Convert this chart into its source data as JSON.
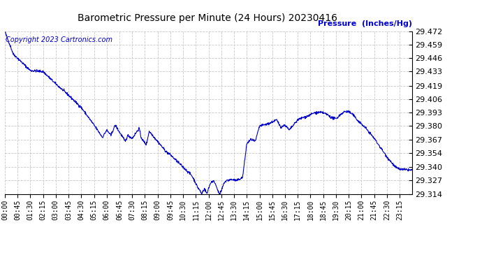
{
  "title": "Barometric Pressure per Minute (24 Hours) 20230416",
  "ylabel": "Pressure  (Inches/Hg)",
  "copyright_text": "Copyright 2023 Cartronics.com",
  "line_color": "#0000cc",
  "ylabel_color": "#0000cc",
  "copyright_color": "#0000cc",
  "background_color": "#ffffff",
  "grid_color": "#c8c8c8",
  "title_color": "#000000",
  "ylim_min": 29.314,
  "ylim_max": 29.472,
  "yticks": [
    29.314,
    29.327,
    29.34,
    29.354,
    29.367,
    29.38,
    29.393,
    29.406,
    29.419,
    29.433,
    29.446,
    29.459,
    29.472
  ],
  "xtick_labels": [
    "00:00",
    "00:45",
    "01:30",
    "02:15",
    "03:00",
    "03:45",
    "04:30",
    "05:15",
    "06:00",
    "06:45",
    "07:30",
    "08:15",
    "09:00",
    "09:45",
    "10:30",
    "11:15",
    "12:00",
    "12:45",
    "13:30",
    "14:15",
    "15:00",
    "15:45",
    "16:30",
    "17:15",
    "18:00",
    "18:45",
    "19:30",
    "20:15",
    "21:00",
    "21:45",
    "22:30",
    "23:15"
  ],
  "breakpoints_x": [
    0,
    30,
    90,
    135,
    180,
    225,
    270,
    315,
    330,
    345,
    360,
    375,
    390,
    405,
    415,
    425,
    435,
    450,
    465,
    475,
    480,
    490,
    500,
    510,
    525,
    540,
    555,
    570,
    585,
    600,
    615,
    630,
    645,
    660,
    670,
    680,
    690,
    695,
    705,
    715,
    720,
    730,
    740,
    750,
    755,
    760,
    765,
    770,
    775,
    785,
    800,
    820,
    840,
    855,
    870,
    885,
    900,
    930,
    945,
    960,
    975,
    990,
    1005,
    1020,
    1035,
    1050,
    1065,
    1080,
    1095,
    1110,
    1125,
    1140,
    1155,
    1170,
    1185,
    1200,
    1215,
    1230,
    1245,
    1260,
    1275,
    1290,
    1305,
    1320,
    1335,
    1350,
    1365,
    1380,
    1395,
    1439
  ],
  "breakpoints_y": [
    29.472,
    29.45,
    29.434,
    29.433,
    29.421,
    29.41,
    29.398,
    29.381,
    29.375,
    29.369,
    29.376,
    29.371,
    29.381,
    29.374,
    29.37,
    29.365,
    29.371,
    29.368,
    29.374,
    29.378,
    29.37,
    29.365,
    29.362,
    29.375,
    29.37,
    29.365,
    29.36,
    29.355,
    29.352,
    29.348,
    29.344,
    29.34,
    29.336,
    29.332,
    29.327,
    29.321,
    29.317,
    29.314,
    29.319,
    29.314,
    29.32,
    29.326,
    29.326,
    29.32,
    29.315,
    29.314,
    29.317,
    29.321,
    29.325,
    29.327,
    29.328,
    29.327,
    29.33,
    29.363,
    29.367,
    29.365,
    29.38,
    29.382,
    29.384,
    29.386,
    29.379,
    29.381,
    29.376,
    29.381,
    29.386,
    29.388,
    29.389,
    29.391,
    29.393,
    29.393,
    29.393,
    29.391,
    29.388,
    29.387,
    29.391,
    29.394,
    29.394,
    29.391,
    29.386,
    29.382,
    29.378,
    29.373,
    29.368,
    29.362,
    29.356,
    29.35,
    29.345,
    29.34,
    29.338,
    29.337
  ]
}
